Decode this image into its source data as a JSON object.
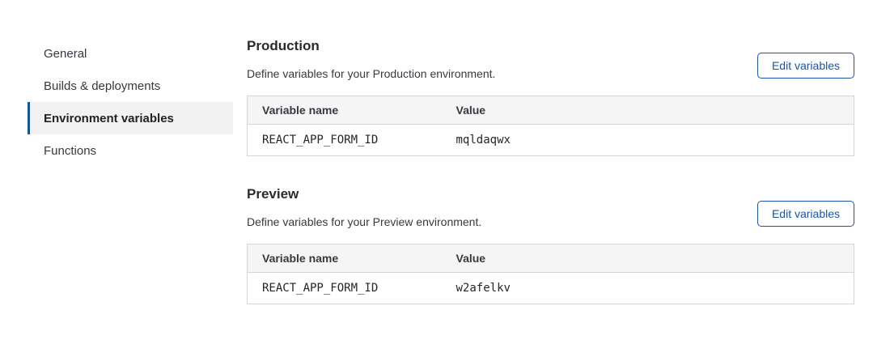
{
  "sidebar": {
    "items": [
      {
        "label": "General",
        "selected": false
      },
      {
        "label": "Builds & deployments",
        "selected": false
      },
      {
        "label": "Environment variables",
        "selected": true
      },
      {
        "label": "Functions",
        "selected": false
      }
    ]
  },
  "sections": [
    {
      "title": "Production",
      "description": "Define variables for your Production environment.",
      "button_label": "Edit variables",
      "table": {
        "headers": [
          "Variable name",
          "Value"
        ],
        "rows": [
          [
            "REACT_APP_FORM_ID",
            "mqldaqwx"
          ]
        ]
      }
    },
    {
      "title": "Preview",
      "description": "Define variables for your Preview environment.",
      "button_label": "Edit variables",
      "table": {
        "headers": [
          "Variable name",
          "Value"
        ],
        "rows": [
          [
            "REACT_APP_FORM_ID",
            "w2afelkv"
          ]
        ]
      }
    }
  ],
  "colors": {
    "accent": "#1a55a5",
    "selected_bar": "#16549c",
    "selected_bg": "#f2f2f2",
    "table_header_bg": "#f5f5f5",
    "table_border": "#d6d6d6",
    "heading_text": "#2b2b2b",
    "body_text": "#36393f"
  }
}
